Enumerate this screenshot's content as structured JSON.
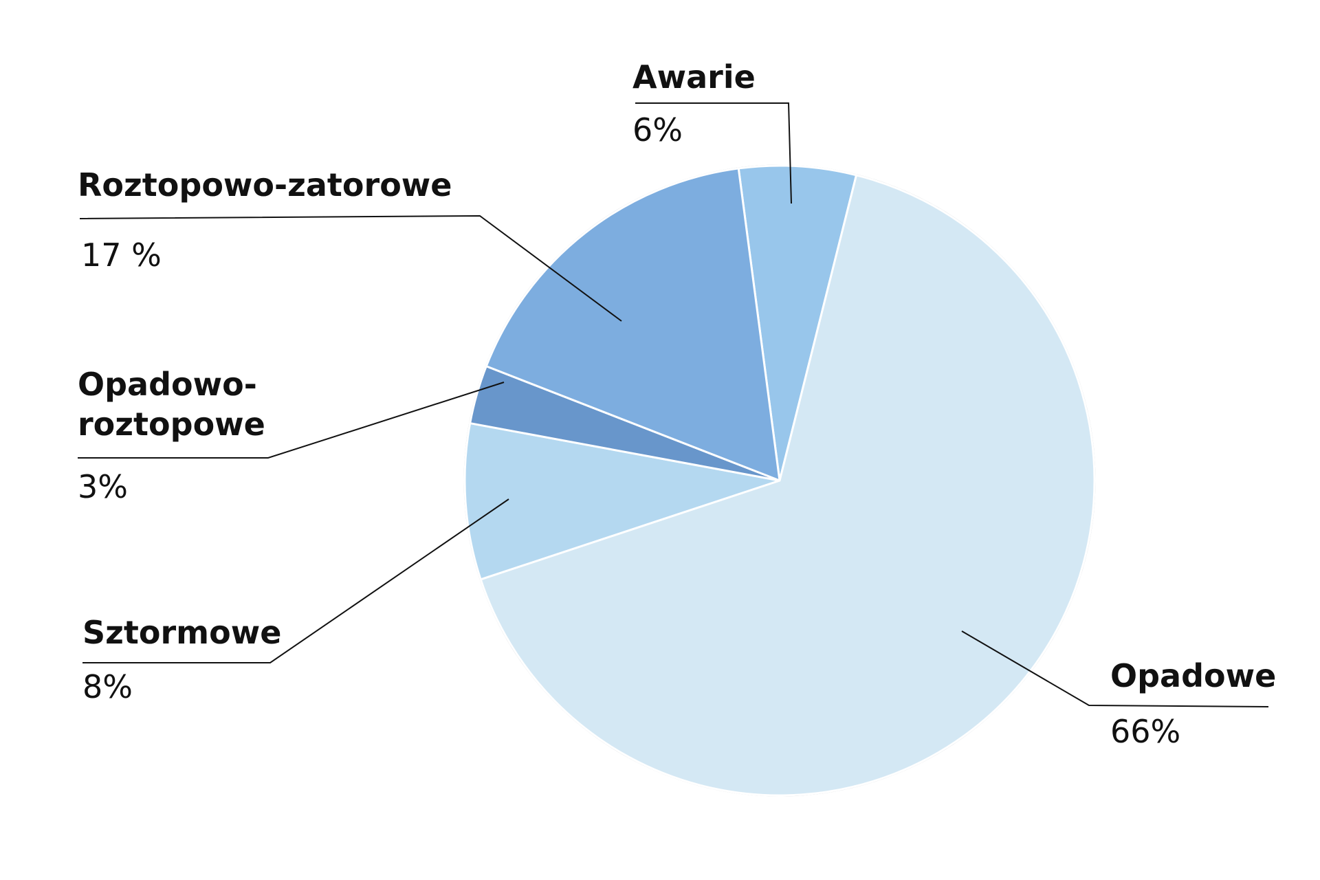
{
  "chart_data": {
    "type": "pie",
    "title": "",
    "start_angle_deg": -7.5,
    "direction": "clockwise",
    "slices": [
      {
        "label": [
          "Awarie"
        ],
        "value_label": "6%",
        "value": 6,
        "color": "#98c6eb"
      },
      {
        "label": [
          "Opadowe"
        ],
        "value_label": "66%",
        "value": 66,
        "color": "#d4e8f4"
      },
      {
        "label": [
          "Sztormowe"
        ],
        "value_label": "8%",
        "value": 8,
        "color": "#b4d8f0"
      },
      {
        "label": [
          "Opadowo-",
          "roztopowe"
        ],
        "value_label": "3%",
        "value": 3,
        "color": "#6896cb"
      },
      {
        "label": [
          "Roztopowo-zatorowe"
        ],
        "value_label": "17 %",
        "value": 17,
        "color": "#7daddf"
      }
    ],
    "legend": "none",
    "grid": false
  }
}
